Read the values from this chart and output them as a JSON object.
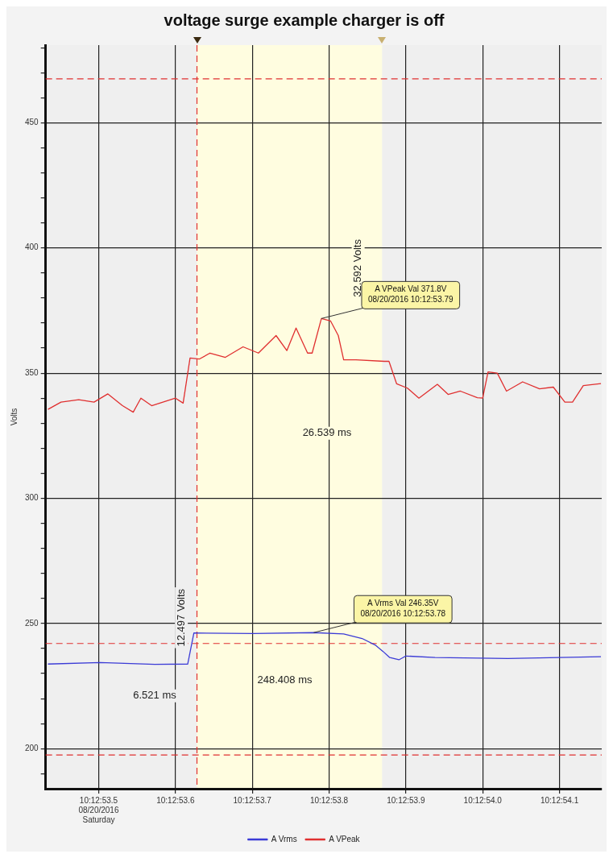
{
  "chart_data": {
    "type": "line",
    "title": "voltage surge example charger is off",
    "ylabel": "Volts",
    "xlim": [
      "2016-08-20T10:12:53.431",
      "2016-08-20T10:12:54.155"
    ],
    "ylim": [
      184,
      481
    ],
    "xticks": [
      {
        "value": "2016-08-20T10:12:53.500",
        "label": "10:12:53.5\n08/20/2016\nSaturday"
      },
      {
        "value": "2016-08-20T10:12:53.600",
        "label": "10:12:53.6"
      },
      {
        "value": "2016-08-20T10:12:53.700",
        "label": "10:12:53.7"
      },
      {
        "value": "2016-08-20T10:12:53.800",
        "label": "10:12:53.8"
      },
      {
        "value": "2016-08-20T10:12:53.900",
        "label": "10:12:53.9"
      },
      {
        "value": "2016-08-20T10:12:54.000",
        "label": "10:12:54.0"
      },
      {
        "value": "2016-08-20T10:12:54.100",
        "label": "10:12:54.1"
      }
    ],
    "yticks": [
      {
        "value": 190,
        "label": null
      },
      200,
      {
        "value": 210,
        "label": null
      },
      {
        "value": 220,
        "label": null
      },
      {
        "value": 230,
        "label": null
      },
      {
        "value": 240,
        "label": null
      },
      250,
      {
        "value": 260,
        "label": null
      },
      {
        "value": 270,
        "label": null
      },
      {
        "value": 280,
        "label": null
      },
      {
        "value": 290,
        "label": null
      },
      300,
      {
        "value": 310,
        "label": null
      },
      {
        "value": 320,
        "label": null
      },
      {
        "value": 330,
        "label": null
      },
      {
        "value": 340,
        "label": null
      },
      350,
      {
        "value": 360,
        "label": null
      },
      {
        "value": 370,
        "label": null
      },
      {
        "value": 380,
        "label": null
      },
      {
        "value": 390,
        "label": null
      },
      400,
      {
        "value": 410,
        "label": null
      },
      {
        "value": 420,
        "label": null
      },
      {
        "value": 430,
        "label": null
      },
      {
        "value": 440,
        "label": null
      },
      450,
      {
        "value": 460,
        "label": null
      },
      {
        "value": 470,
        "label": null
      },
      {
        "value": 480,
        "label": null
      }
    ],
    "grid": true,
    "legend": "bottom",
    "marker": "none",
    "line_style": "solid",
    "series": [
      {
        "name": "A Vrms",
        "color": "#3b3bd6",
        "x": [
          "2016-08-20T10:12:53.434",
          "2016-08-20T10:12:53.502",
          "2016-08-20T10:12:53.573",
          "2016-08-20T10:12:53.616",
          "2016-08-20T10:12:53.624",
          "2016-08-20T10:12:53.701",
          "2016-08-20T10:12:53.780",
          "2016-08-20T10:12:53.819",
          "2016-08-20T10:12:53.843",
          "2016-08-20T10:12:53.860",
          "2016-08-20T10:12:53.870",
          "2016-08-20T10:12:53.879",
          "2016-08-20T10:12:53.891",
          "2016-08-20T10:12:53.900",
          "2016-08-20T10:12:53.938",
          "2016-08-20T10:12:54.033",
          "2016-08-20T10:12:54.154"
        ],
        "values": [
          233.8,
          234.4,
          233.7,
          233.8,
          246.2,
          246,
          246.35,
          245.8,
          244,
          241.4,
          238.9,
          236.4,
          235.5,
          237,
          236.4,
          236,
          236.7
        ]
      },
      {
        "name": "A VPeak",
        "color": "#e03030",
        "x": [
          "2016-08-20T10:12:53.434",
          "2016-08-20T10:12:53.451",
          "2016-08-20T10:12:53.474",
          "2016-08-20T10:12:53.494",
          "2016-08-20T10:12:53.512",
          "2016-08-20T10:12:53.531",
          "2016-08-20T10:12:53.545",
          "2016-08-20T10:12:53.555",
          "2016-08-20T10:12:53.569",
          "2016-08-20T10:12:53.600",
          "2016-08-20T10:12:53.610",
          "2016-08-20T10:12:53.619",
          "2016-08-20T10:12:53.631",
          "2016-08-20T10:12:53.645",
          "2016-08-20T10:12:53.665",
          "2016-08-20T10:12:53.688",
          "2016-08-20T10:12:53.708",
          "2016-08-20T10:12:53.731",
          "2016-08-20T10:12:53.745",
          "2016-08-20T10:12:53.757",
          "2016-08-20T10:12:53.772",
          "2016-08-20T10:12:53.778",
          "2016-08-20T10:12:53.790",
          "2016-08-20T10:12:53.802",
          "2016-08-20T10:12:53.812",
          "2016-08-20T10:12:53.819",
          "2016-08-20T10:12:53.835",
          "2016-08-20T10:12:53.872",
          "2016-08-20T10:12:53.878",
          "2016-08-20T10:12:53.888",
          "2016-08-20T10:12:53.902",
          "2016-08-20T10:12:53.917",
          "2016-08-20T10:12:53.941",
          "2016-08-20T10:12:53.955",
          "2016-08-20T10:12:53.971",
          "2016-08-20T10:12:53.993",
          "2016-08-20T10:12:54.000",
          "2016-08-20T10:12:54.007",
          "2016-08-20T10:12:54.019",
          "2016-08-20T10:12:54.031",
          "2016-08-20T10:12:54.052",
          "2016-08-20T10:12:54.074",
          "2016-08-20T10:12:54.092",
          "2016-08-20T10:12:54.107",
          "2016-08-20T10:12:54.117",
          "2016-08-20T10:12:54.131",
          "2016-08-20T10:12:54.154"
        ],
        "values": [
          335.5,
          338.4,
          339.4,
          338.4,
          341.7,
          337,
          334.4,
          340,
          337,
          340,
          338,
          356,
          355.6,
          358,
          356.3,
          360.5,
          358,
          365,
          359,
          368,
          358,
          358,
          371.8,
          370.8,
          365,
          355.3,
          355.3,
          354.7,
          354.7,
          345.7,
          344,
          340,
          345.5,
          341.5,
          342.8,
          340.2,
          340,
          350.5,
          350,
          342.8,
          346.5,
          343.7,
          344.4,
          338.4,
          338.4,
          345,
          345.8
        ]
      }
    ],
    "ref_lines": [
      {
        "axis": "y",
        "value": 467.5,
        "color": "#e03030",
        "line_style": "dashed"
      },
      {
        "axis": "y",
        "value": 242,
        "color": "#e03030",
        "line_style": "dashed"
      },
      {
        "axis": "y",
        "value": 197.5,
        "color": "#e03030",
        "line_style": "dashed"
      },
      {
        "axis": "x",
        "value": "2016-08-20T10:12:53.628",
        "color": "#e03030",
        "line_style": "dashed"
      }
    ],
    "bands": [
      {
        "axis": "x",
        "from": "2016-08-20T10:12:53.628",
        "to": "2016-08-20T10:12:53.869",
        "color": "#fffde0"
      }
    ],
    "annotations": [
      {
        "text": "A VPeak Val 371.8V\n08/20/2016 10:12:53.79",
        "x": "2016-08-20T10:12:53.790",
        "y": 371.8
      },
      {
        "text": "A Vrms Val 246.35V\n08/20/2016 10:12:53.78",
        "x": "2016-08-20T10:12:53.780",
        "y": 246.35
      },
      "32.592 Volts",
      "26.539 ms",
      "12.497 Volts",
      "6.521 ms",
      "248.408 ms"
    ]
  }
}
